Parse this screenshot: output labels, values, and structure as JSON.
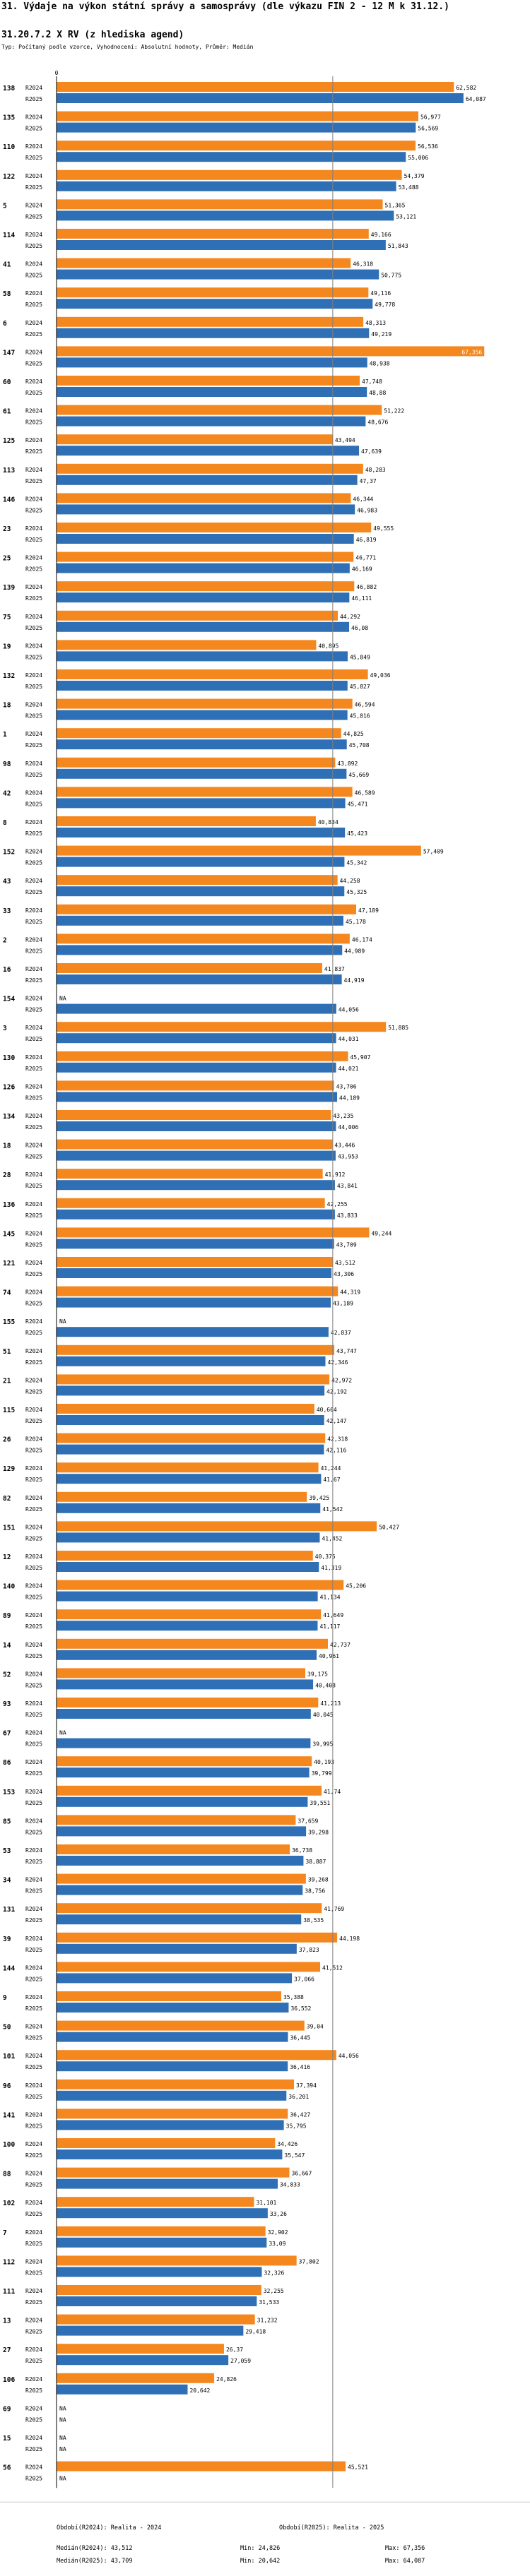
{
  "header": {
    "title": "31. Výdaje na výkon státní správy a samosprávy (dle výkazu FIN 2 - 12 M k 31.12.)",
    "subtitle": "31.20.7.2 X RV (z hlediska agend)",
    "params": "Typ: Počítaný podle vzorce, Vyhodnocení: Absolutní hodnoty, Průměr: Medián"
  },
  "colors": {
    "r2024": "#f5871f",
    "r2025": "#2f6fb5",
    "axis": "#000000",
    "median": "#808080"
  },
  "chart_data": {
    "type": "bar",
    "orientation": "horizontal",
    "series_names": [
      "R2024",
      "R2025"
    ],
    "axis_zero_label": "0",
    "xlim": [
      0,
      69
    ],
    "na_label": "NA",
    "median_line": 43.5,
    "rows": [
      {
        "id": "138",
        "r2024": "62,582",
        "r2025": "64,087"
      },
      {
        "id": "135",
        "r2024": "56,977",
        "r2025": "56,569"
      },
      {
        "id": "110",
        "r2024": "56,536",
        "r2025": "55,006"
      },
      {
        "id": "122",
        "r2024": "54,379",
        "r2025": "53,488"
      },
      {
        "id": "5",
        "r2024": "51,365",
        "r2025": "53,121"
      },
      {
        "id": "114",
        "r2024": "49,166",
        "r2025": "51,843"
      },
      {
        "id": "41",
        "r2024": "46,318",
        "r2025": "50,775"
      },
      {
        "id": "58",
        "r2024": "49,116",
        "r2025": "49,778"
      },
      {
        "id": "6",
        "r2024": "48,313",
        "r2025": "49,219"
      },
      {
        "id": "147",
        "r2024": "67,356",
        "r2025": "48,938"
      },
      {
        "id": "60",
        "r2024": "47,748",
        "r2025": "48,88"
      },
      {
        "id": "61",
        "r2024": "51,222",
        "r2025": "48,676"
      },
      {
        "id": "125",
        "r2024": "43,494",
        "r2025": "47,639"
      },
      {
        "id": "113",
        "r2024": "48,283",
        "r2025": "47,37"
      },
      {
        "id": "146",
        "r2024": "46,344",
        "r2025": "46,983"
      },
      {
        "id": "23",
        "r2024": "49,555",
        "r2025": "46,819"
      },
      {
        "id": "25",
        "r2024": "46,771",
        "r2025": "46,169"
      },
      {
        "id": "139",
        "r2024": "46,882",
        "r2025": "46,111"
      },
      {
        "id": "75",
        "r2024": "44,292",
        "r2025": "46,08"
      },
      {
        "id": "19",
        "r2024": "40,895",
        "r2025": "45,849"
      },
      {
        "id": "132",
        "r2024": "49,036",
        "r2025": "45,827"
      },
      {
        "id": "18",
        "r2024": "46,594",
        "r2025": "45,816"
      },
      {
        "id": "1",
        "r2024": "44,825",
        "r2025": "45,708"
      },
      {
        "id": "98",
        "r2024": "43,892",
        "r2025": "45,669"
      },
      {
        "id": "42",
        "r2024": "46,589",
        "r2025": "45,471"
      },
      {
        "id": "8",
        "r2024": "40,834",
        "r2025": "45,423"
      },
      {
        "id": "152",
        "r2024": "57,409",
        "r2025": "45,342"
      },
      {
        "id": "43",
        "r2024": "44,258",
        "r2025": "45,325"
      },
      {
        "id": "33",
        "r2024": "47,189",
        "r2025": "45,178"
      },
      {
        "id": "2",
        "r2024": "46,174",
        "r2025": "44,989"
      },
      {
        "id": "16",
        "r2024": "41,837",
        "r2025": "44,919"
      },
      {
        "id": "154",
        "r2024": null,
        "r2025": "44,056"
      },
      {
        "id": "3",
        "r2024": "51,885",
        "r2025": "44,031"
      },
      {
        "id": "130",
        "r2024": "45,907",
        "r2025": "44,021"
      },
      {
        "id": "126",
        "r2024": "43,706",
        "r2025": "44,189"
      },
      {
        "id": "134",
        "r2024": "43,235",
        "r2025": "44,006"
      },
      {
        "id": "18",
        "r2024": "43,446",
        "r2025": "43,953"
      },
      {
        "id": "28",
        "r2024": "41,912",
        "r2025": "43,841"
      },
      {
        "id": "136",
        "r2024": "42,255",
        "r2025": "43,833"
      },
      {
        "id": "145",
        "r2024": "49,244",
        "r2025": "43,709"
      },
      {
        "id": "121",
        "r2024": "43,512",
        "r2025": "43,306"
      },
      {
        "id": "74",
        "r2024": "44,319",
        "r2025": "43,189"
      },
      {
        "id": "155",
        "r2024": null,
        "r2025": "42,837"
      },
      {
        "id": "51",
        "r2024": "43,747",
        "r2025": "42,346"
      },
      {
        "id": "21",
        "r2024": "42,972",
        "r2025": "42,192"
      },
      {
        "id": "115",
        "r2024": "40,604",
        "r2025": "42,147"
      },
      {
        "id": "26",
        "r2024": "42,318",
        "r2025": "42,116"
      },
      {
        "id": "129",
        "r2024": "41,244",
        "r2025": "41,67"
      },
      {
        "id": "82",
        "r2024": "39,425",
        "r2025": "41,542"
      },
      {
        "id": "151",
        "r2024": "50,427",
        "r2025": "41,452"
      },
      {
        "id": "12",
        "r2024": "40,375",
        "r2025": "41,319"
      },
      {
        "id": "140",
        "r2024": "45,206",
        "r2025": "41,134"
      },
      {
        "id": "89",
        "r2024": "41,649",
        "r2025": "41,117"
      },
      {
        "id": "14",
        "r2024": "42,737",
        "r2025": "40,961"
      },
      {
        "id": "52",
        "r2024": "39,175",
        "r2025": "40,408"
      },
      {
        "id": "93",
        "r2024": "41,213",
        "r2025": "40,045"
      },
      {
        "id": "67",
        "r2024": null,
        "r2025": "39,995"
      },
      {
        "id": "86",
        "r2024": "40,193",
        "r2025": "39,799"
      },
      {
        "id": "153",
        "r2024": "41,74",
        "r2025": "39,551"
      },
      {
        "id": "85",
        "r2024": "37,659",
        "r2025": "39,298"
      },
      {
        "id": "53",
        "r2024": "36,738",
        "r2025": "38,887"
      },
      {
        "id": "34",
        "r2024": "39,268",
        "r2025": "38,756"
      },
      {
        "id": "131",
        "r2024": "41,769",
        "r2025": "38,535"
      },
      {
        "id": "39",
        "r2024": "44,198",
        "r2025": "37,823"
      },
      {
        "id": "144",
        "r2024": "41,512",
        "r2025": "37,066"
      },
      {
        "id": "9",
        "r2024": "35,388",
        "r2025": "36,552"
      },
      {
        "id": "50",
        "r2024": "39,04",
        "r2025": "36,445"
      },
      {
        "id": "101",
        "r2024": "44,056",
        "r2025": "36,416"
      },
      {
        "id": "96",
        "r2024": "37,394",
        "r2025": "36,201"
      },
      {
        "id": "141",
        "r2024": "36,427",
        "r2025": "35,795"
      },
      {
        "id": "100",
        "r2024": "34,426",
        "r2025": "35,547"
      },
      {
        "id": "88",
        "r2024": "36,667",
        "r2025": "34,833"
      },
      {
        "id": "102",
        "r2024": "31,101",
        "r2025": "33,26"
      },
      {
        "id": "7",
        "r2024": "32,902",
        "r2025": "33,09"
      },
      {
        "id": "112",
        "r2024": "37,802",
        "r2025": "32,326"
      },
      {
        "id": "111",
        "r2024": "32,255",
        "r2025": "31,533"
      },
      {
        "id": "13",
        "r2024": "31,232",
        "r2025": "29,418"
      },
      {
        "id": "27",
        "r2024": "26,37",
        "r2025": "27,059"
      },
      {
        "id": "106",
        "r2024": "24,826",
        "r2025": "20,642"
      },
      {
        "id": "69",
        "r2024": null,
        "r2025": null
      },
      {
        "id": "15",
        "r2024": null,
        "r2025": null
      },
      {
        "id": "56",
        "r2024": "45,521",
        "r2025": null
      }
    ]
  },
  "summary": {
    "period1": "Období(R2024): Realita - 2024",
    "period2": "Období(R2025): Realita - 2025",
    "row1_median": "Medián(R2024): 43,512",
    "row1_min": "Min: 24,826",
    "row1_max": "Max: 67,356",
    "row2_median": "Medián(R2025): 43,709",
    "row2_min": "Min: 20,642",
    "row2_max": "Max: 64,087"
  }
}
